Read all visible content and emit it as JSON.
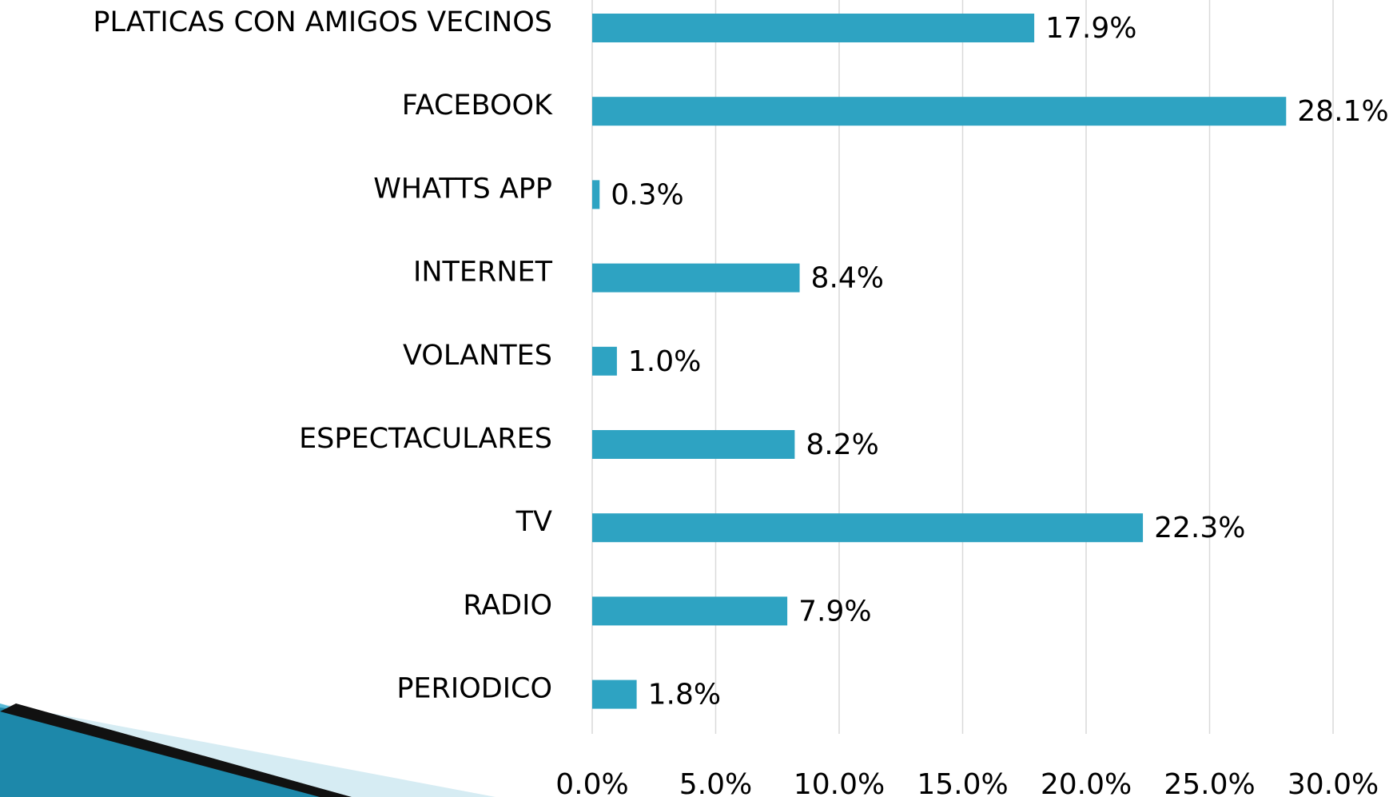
{
  "chart_data": {
    "type": "barh",
    "categories": [
      "PLATICAS CON AMIGOS VECINOS",
      "FACEBOOK",
      "WHATTS APP",
      "INTERNET",
      "VOLANTES",
      "ESPECTACULARES",
      "TV",
      "RADIO",
      "PERIODICO"
    ],
    "values": [
      17.9,
      28.1,
      0.3,
      8.4,
      1.0,
      8.2,
      22.3,
      7.9,
      1.8
    ],
    "value_labels": [
      "17.9%",
      "28.1%",
      "0.3%",
      "8.4%",
      "1.0%",
      "8.2%",
      "22.3%",
      "7.9%",
      "1.8%"
    ],
    "color": "#2ea3c2",
    "xlim": [
      0,
      30
    ],
    "xticks": [
      {
        "value": 0,
        "label": "0.0%"
      },
      {
        "value": 5,
        "label": "5.0%"
      },
      {
        "value": 10,
        "label": "10.0%"
      },
      {
        "value": 15,
        "label": "15.0%"
      },
      {
        "value": 20,
        "label": "20.0%"
      },
      {
        "value": 25,
        "label": "25.0%"
      },
      {
        "value": 30,
        "label": "30.0%"
      }
    ],
    "grid": true
  }
}
